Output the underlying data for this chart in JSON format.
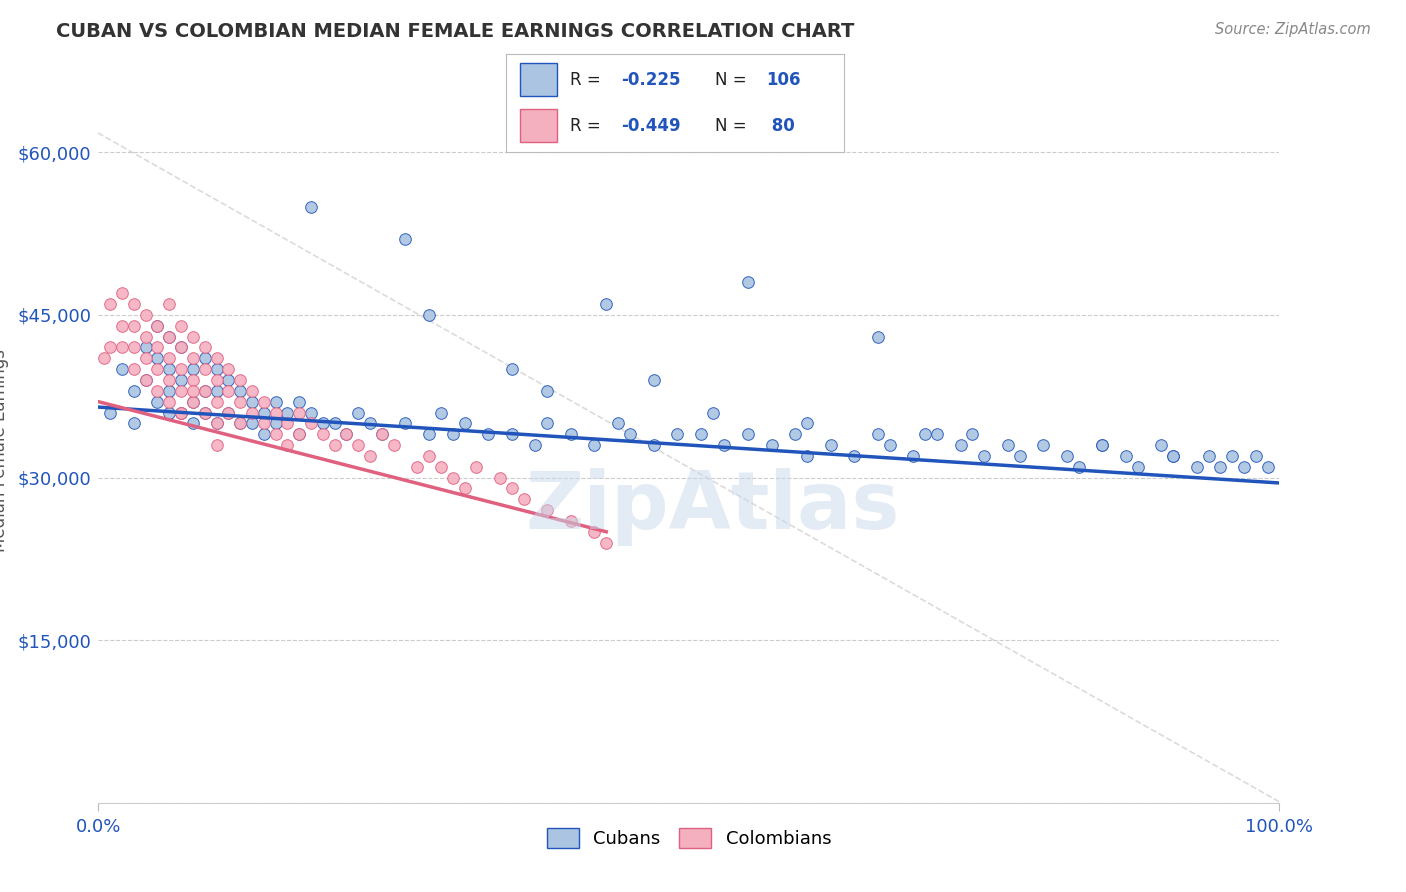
{
  "title": "CUBAN VS COLOMBIAN MEDIAN FEMALE EARNINGS CORRELATION CHART",
  "source_text": "Source: ZipAtlas.com",
  "ylabel": "Median Female Earnings",
  "xlim": [
    0.0,
    1.0
  ],
  "ylim": [
    0,
    65000
  ],
  "yticks": [
    0,
    15000,
    30000,
    45000,
    60000
  ],
  "ytick_labels": [
    "",
    "$15,000",
    "$30,000",
    "$45,000",
    "$60,000"
  ],
  "xtick_labels": [
    "0.0%",
    "100.0%"
  ],
  "background_color": "#ffffff",
  "grid_color": "#cccccc",
  "cuban_color": "#aac4e2",
  "colombian_color": "#f5b0c0",
  "cuban_line_color": "#2255bb",
  "colombian_line_color": "#e06080",
  "diagonal_color": "#cccccc",
  "legend_R_color": "#2255bb",
  "cuban_R": -0.225,
  "cuban_N": 106,
  "colombian_R": -0.449,
  "colombian_N": 80,
  "watermark": "ZipAtlas",
  "watermark_color": "#c8d8ea",
  "cuban_x": [
    0.01,
    0.02,
    0.03,
    0.03,
    0.04,
    0.04,
    0.05,
    0.05,
    0.05,
    0.06,
    0.06,
    0.06,
    0.06,
    0.07,
    0.07,
    0.07,
    0.08,
    0.08,
    0.08,
    0.09,
    0.09,
    0.09,
    0.1,
    0.1,
    0.1,
    0.11,
    0.11,
    0.12,
    0.12,
    0.13,
    0.13,
    0.14,
    0.14,
    0.15,
    0.15,
    0.16,
    0.17,
    0.17,
    0.18,
    0.19,
    0.2,
    0.21,
    0.22,
    0.23,
    0.24,
    0.26,
    0.28,
    0.29,
    0.3,
    0.31,
    0.33,
    0.35,
    0.37,
    0.38,
    0.4,
    0.42,
    0.44,
    0.45,
    0.47,
    0.49,
    0.51,
    0.53,
    0.55,
    0.57,
    0.59,
    0.6,
    0.62,
    0.64,
    0.66,
    0.67,
    0.69,
    0.71,
    0.73,
    0.75,
    0.77,
    0.78,
    0.8,
    0.82,
    0.83,
    0.85,
    0.87,
    0.88,
    0.9,
    0.91,
    0.93,
    0.94,
    0.95,
    0.96,
    0.97,
    0.98,
    0.99,
    0.26,
    0.18,
    0.55,
    0.66,
    0.43,
    0.28,
    0.35,
    0.47,
    0.6,
    0.74,
    0.85,
    0.91,
    0.38,
    0.52,
    0.7
  ],
  "cuban_y": [
    36000,
    40000,
    38000,
    35000,
    42000,
    39000,
    44000,
    41000,
    37000,
    43000,
    40000,
    38000,
    36000,
    42000,
    39000,
    36000,
    40000,
    37000,
    35000,
    41000,
    38000,
    36000,
    40000,
    38000,
    35000,
    39000,
    36000,
    38000,
    35000,
    37000,
    35000,
    36000,
    34000,
    37000,
    35000,
    36000,
    37000,
    34000,
    36000,
    35000,
    35000,
    34000,
    36000,
    35000,
    34000,
    35000,
    34000,
    36000,
    34000,
    35000,
    34000,
    34000,
    33000,
    35000,
    34000,
    33000,
    35000,
    34000,
    33000,
    34000,
    34000,
    33000,
    34000,
    33000,
    34000,
    32000,
    33000,
    32000,
    34000,
    33000,
    32000,
    34000,
    33000,
    32000,
    33000,
    32000,
    33000,
    32000,
    31000,
    33000,
    32000,
    31000,
    33000,
    32000,
    31000,
    32000,
    31000,
    32000,
    31000,
    32000,
    31000,
    52000,
    55000,
    48000,
    43000,
    46000,
    45000,
    40000,
    39000,
    35000,
    34000,
    33000,
    32000,
    38000,
    36000,
    34000
  ],
  "colombian_x": [
    0.005,
    0.01,
    0.01,
    0.02,
    0.02,
    0.02,
    0.03,
    0.03,
    0.03,
    0.03,
    0.04,
    0.04,
    0.04,
    0.04,
    0.05,
    0.05,
    0.05,
    0.05,
    0.06,
    0.06,
    0.06,
    0.06,
    0.06,
    0.07,
    0.07,
    0.07,
    0.07,
    0.07,
    0.08,
    0.08,
    0.08,
    0.08,
    0.09,
    0.09,
    0.09,
    0.09,
    0.1,
    0.1,
    0.1,
    0.1,
    0.11,
    0.11,
    0.11,
    0.12,
    0.12,
    0.12,
    0.13,
    0.13,
    0.14,
    0.14,
    0.15,
    0.15,
    0.16,
    0.16,
    0.17,
    0.17,
    0.18,
    0.19,
    0.2,
    0.21,
    0.22,
    0.23,
    0.24,
    0.25,
    0.27,
    0.28,
    0.29,
    0.3,
    0.31,
    0.32,
    0.34,
    0.35,
    0.36,
    0.38,
    0.4,
    0.42,
    0.43,
    0.1,
    0.07,
    0.08
  ],
  "colombian_y": [
    41000,
    46000,
    42000,
    47000,
    44000,
    42000,
    46000,
    44000,
    42000,
    40000,
    45000,
    43000,
    41000,
    39000,
    44000,
    42000,
    40000,
    38000,
    46000,
    43000,
    41000,
    39000,
    37000,
    44000,
    42000,
    40000,
    38000,
    36000,
    43000,
    41000,
    39000,
    37000,
    42000,
    40000,
    38000,
    36000,
    41000,
    39000,
    37000,
    35000,
    40000,
    38000,
    36000,
    39000,
    37000,
    35000,
    38000,
    36000,
    37000,
    35000,
    36000,
    34000,
    35000,
    33000,
    36000,
    34000,
    35000,
    34000,
    33000,
    34000,
    33000,
    32000,
    34000,
    33000,
    31000,
    32000,
    31000,
    30000,
    29000,
    31000,
    30000,
    29000,
    28000,
    27000,
    26000,
    25000,
    24000,
    33000,
    36000,
    38000
  ]
}
